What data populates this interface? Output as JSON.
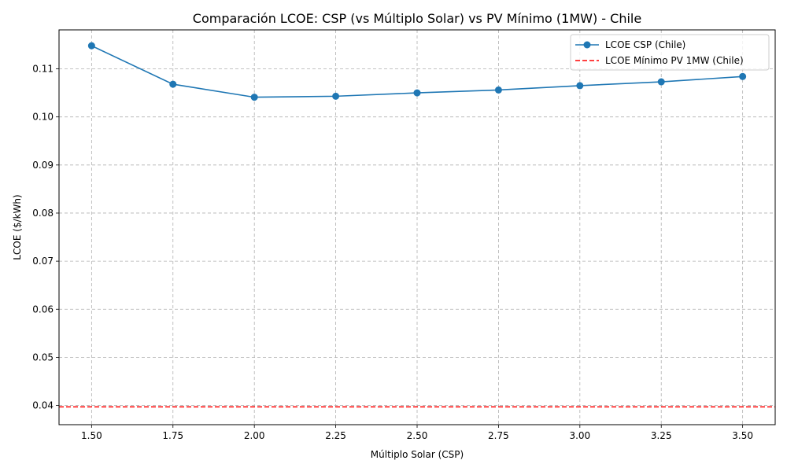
{
  "chart_data": {
    "type": "line",
    "title": "Comparación LCOE: CSP (vs Múltiplo Solar) vs PV Mínimo (1MW) - Chile",
    "xlabel": "Múltiplo Solar (CSP)",
    "ylabel": "LCOE ($/kWh)",
    "xlim": [
      1.4,
      3.6
    ],
    "ylim": [
      0.036,
      0.1181
    ],
    "x_ticks": [
      "1.50",
      "1.75",
      "2.00",
      "2.25",
      "2.50",
      "2.75",
      "3.00",
      "3.25",
      "3.50"
    ],
    "y_ticks": [
      "0.04",
      "0.05",
      "0.06",
      "0.07",
      "0.08",
      "0.09",
      "0.10",
      "0.11"
    ],
    "grid": true,
    "legend_position": "top-right",
    "series": [
      {
        "name": "LCOE CSP (Chile)",
        "color": "#1f77b4",
        "marker": "circle",
        "line_style": "solid",
        "x": [
          1.5,
          1.75,
          2.0,
          2.25,
          2.5,
          2.75,
          3.0,
          3.25,
          3.5
        ],
        "y": [
          0.1148,
          0.1068,
          0.1041,
          0.1043,
          0.105,
          0.1056,
          0.1065,
          0.1073,
          0.1084
        ]
      }
    ],
    "reference_lines": [
      {
        "name": "LCOE Mínimo PV 1MW (Chile)",
        "color": "#ff0000",
        "line_style": "dashed",
        "orientation": "horizontal",
        "y": 0.0397
      }
    ]
  }
}
